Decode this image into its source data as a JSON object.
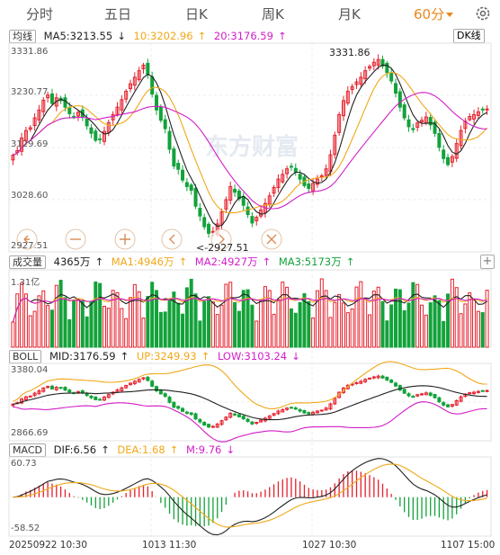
{
  "tabs": [
    {
      "label": "分时"
    },
    {
      "label": "五日"
    },
    {
      "label": "日K"
    },
    {
      "label": "周K"
    },
    {
      "label": "月K"
    },
    {
      "label": "60分",
      "active": true
    }
  ],
  "legends": {
    "ma": {
      "label": "均线",
      "ma5": "MA5:3213.55",
      "ma10": "10:3202.96",
      "ma20": "20:3176.59",
      "dk": "DK线"
    },
    "vol": {
      "label": "成交量",
      "vol": "4365万",
      "ma1": "MA1:4946万",
      "ma2": "MA2:4927万",
      "ma3": "MA3:5173万"
    },
    "boll": {
      "label": "BOLL",
      "mid": "MID:3176.59",
      "up": "UP:3249.93",
      "low": "LOW:3103.24"
    },
    "macd": {
      "label": "MACD",
      "dif": "DIF:6.56",
      "dea": "DEA:1.68",
      "m": "M:9.76"
    }
  },
  "axis": {
    "price_ticks": [
      "3331.86",
      "3230.77",
      "3129.69",
      "3028.60",
      "2927.51"
    ],
    "vol_top": "1.31亿",
    "boll_ticks": [
      "3380.04",
      "2866.69"
    ],
    "macd_ticks": [
      "60.73",
      "-58.52"
    ],
    "dates": [
      "20250922 10:30",
      "1013 11:30",
      "1027 10:30",
      "1107 15:00"
    ]
  },
  "annotations": {
    "high": "3331.86",
    "low": "<-2927.51"
  },
  "watermark": "东方财富",
  "colors": {
    "up": "#e5212d",
    "down": "#13a23a",
    "ma5": "#222222",
    "ma10": "#f0a818",
    "ma20": "#d21ec8",
    "active": "#e8881c"
  },
  "controls": [
    "left-arrow-icon",
    "minus-icon",
    "plus-icon",
    "prev-icon",
    "next-icon",
    "shrink-icon"
  ],
  "chart_data": {
    "type": "candlestick",
    "period": "60分",
    "ylim": [
      2927.51,
      3331.86
    ],
    "high": 3331.86,
    "low": 2927.51,
    "series": [
      {
        "name": "MA5",
        "last": 3213.55
      },
      {
        "name": "MA10",
        "last": 3202.96
      },
      {
        "name": "MA20",
        "last": 3176.59
      }
    ],
    "volume": {
      "last": "4365万",
      "max": "1.31亿",
      "MA1": "4946万",
      "MA2": "4927万",
      "MA3": "5173万"
    },
    "boll": {
      "MID": 3176.59,
      "UP": 3249.93,
      "LOW": 3103.24,
      "ylim": [
        2866.69,
        3380.04
      ]
    },
    "macd": {
      "DIF": 6.56,
      "DEA": 1.68,
      "M": 9.76,
      "ylim": [
        -58.52,
        60.73
      ]
    },
    "closes": [
      3115,
      3125,
      3152,
      3168,
      3174,
      3195,
      3212,
      3233,
      3244,
      3226,
      3238,
      3232,
      3218,
      3204,
      3197,
      3207,
      3196,
      3178,
      3162,
      3147,
      3150,
      3166,
      3185,
      3202,
      3218,
      3234,
      3252,
      3268,
      3282,
      3296,
      3308,
      3288,
      3246,
      3212,
      3190,
      3172,
      3128,
      3092,
      3085,
      3062,
      3048,
      3040,
      3006,
      2985,
      2962,
      2948,
      2952,
      2968,
      2994,
      3020,
      3048,
      3036,
      3022,
      3008,
      2988,
      2970,
      2982,
      2998,
      3012,
      3028,
      3046,
      3064,
      3074,
      3086,
      3090,
      3079,
      3064,
      3050,
      3044,
      3055,
      3064,
      3071,
      3086,
      3116,
      3158,
      3202,
      3232,
      3252,
      3262,
      3272,
      3282,
      3296,
      3305,
      3314,
      3320,
      3306,
      3292,
      3274,
      3248,
      3218,
      3195,
      3176,
      3170,
      3184,
      3190,
      3197,
      3180,
      3162,
      3132,
      3108,
      3095,
      3112,
      3140,
      3168,
      3188,
      3198,
      3202,
      3208,
      3212,
      3214
    ]
  }
}
